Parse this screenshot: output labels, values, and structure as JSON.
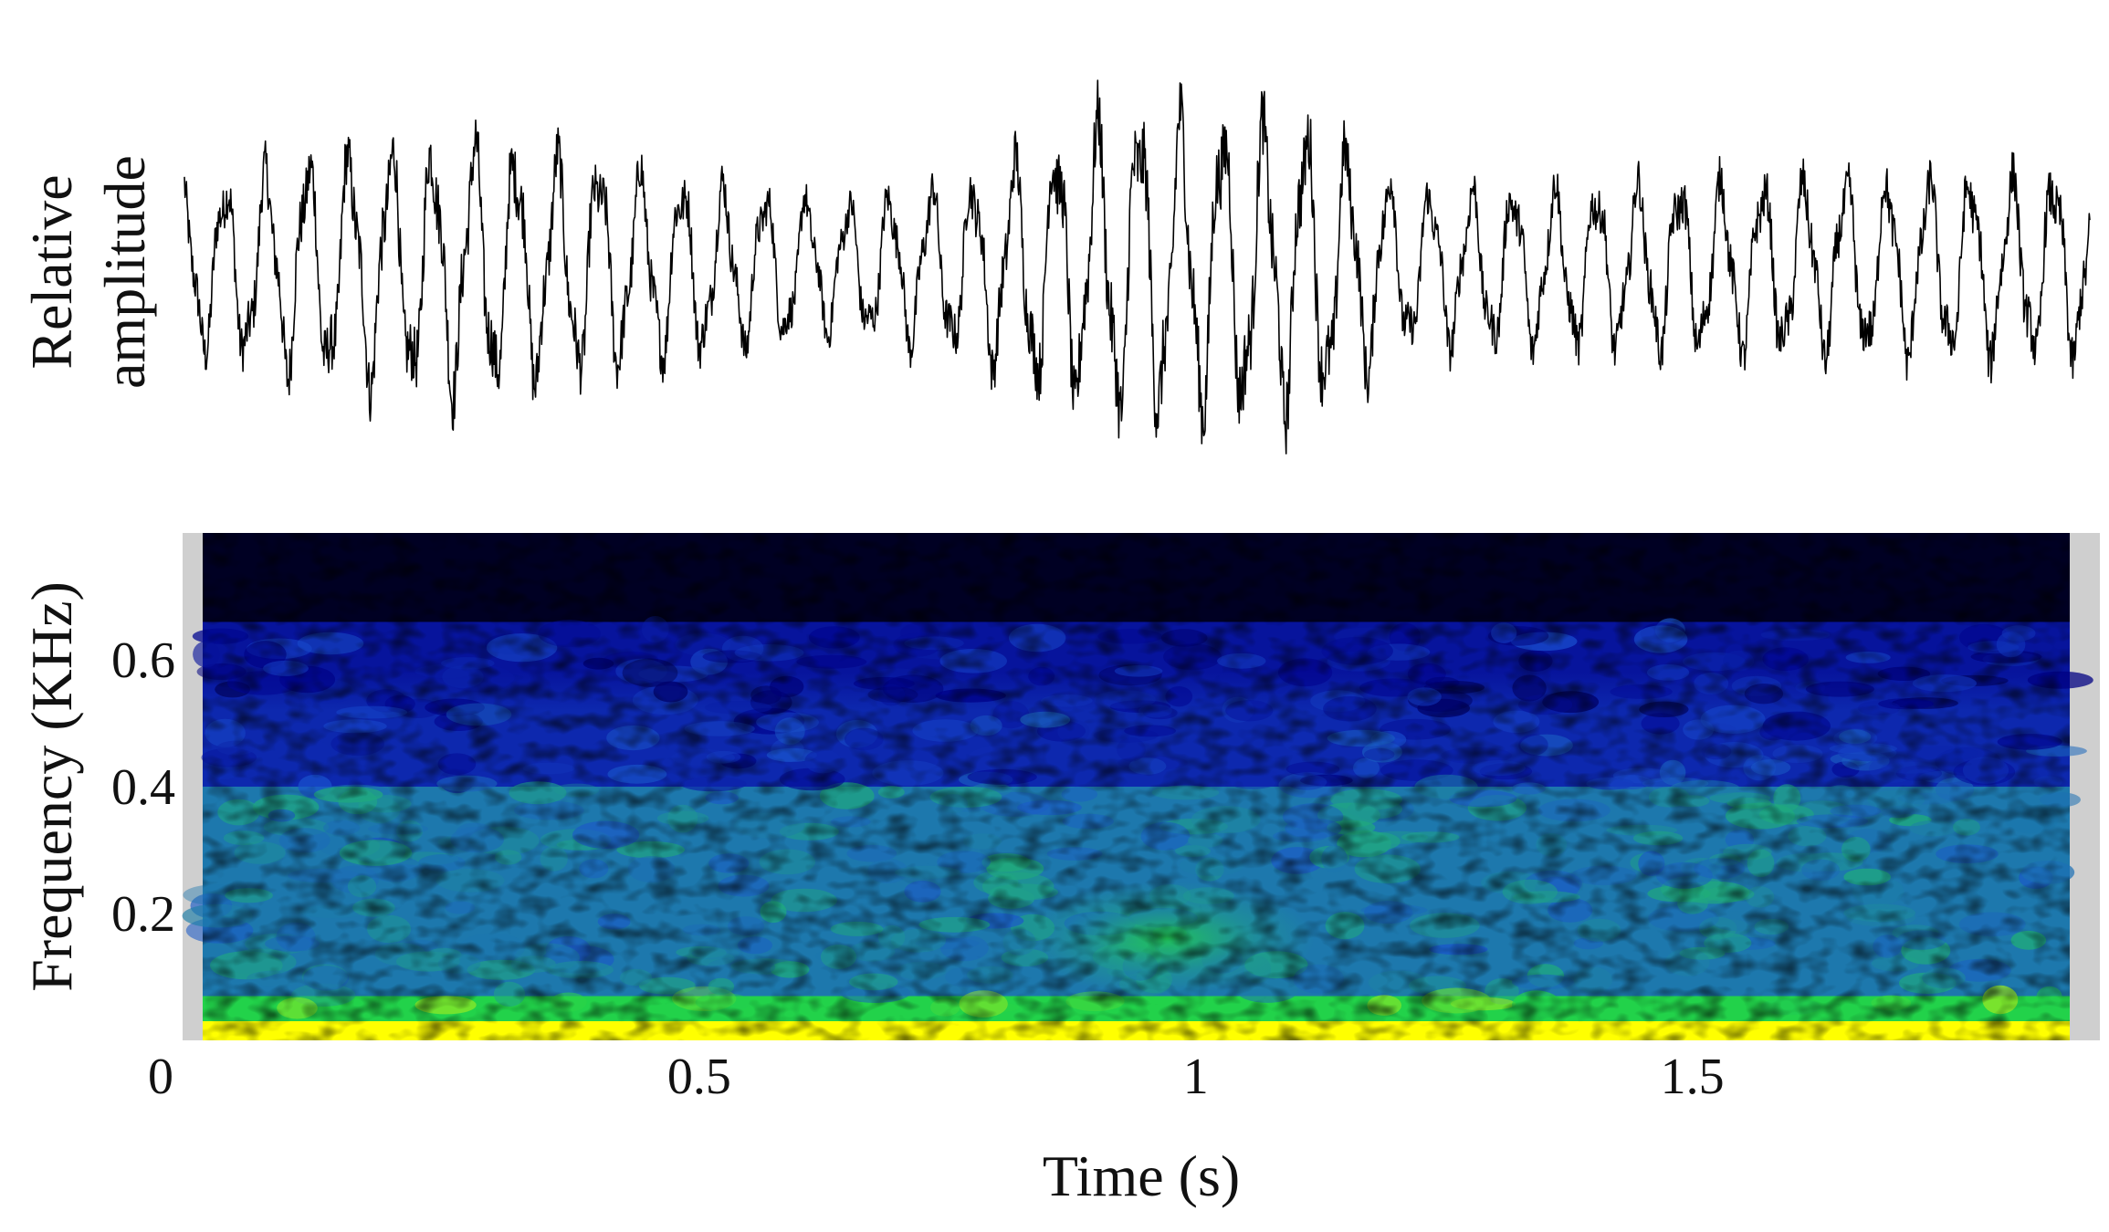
{
  "chart_data": [
    {
      "type": "line",
      "ylabel_lines": [
        "Relative",
        "amplitude"
      ],
      "x_unit": "s",
      "xlim": [
        0,
        1.88
      ],
      "ylim": [
        -1,
        1
      ],
      "axes_visible": false,
      "color": "#000000",
      "series": [
        {
          "envelope": [
            {
              "t": 0.0,
              "amp": 0.55
            },
            {
              "t": 0.1,
              "amp": 0.72
            },
            {
              "t": 0.25,
              "amp": 0.82
            },
            {
              "t": 0.45,
              "amp": 0.6
            },
            {
              "t": 0.62,
              "amp": 0.42
            },
            {
              "t": 0.75,
              "amp": 0.55
            },
            {
              "t": 0.9,
              "amp": 0.98
            },
            {
              "t": 1.1,
              "amp": 0.92
            },
            {
              "t": 1.2,
              "amp": 0.5
            },
            {
              "t": 1.45,
              "amp": 0.55
            },
            {
              "t": 1.88,
              "amp": 0.6
            }
          ]
        }
      ]
    },
    {
      "type": "heatmap",
      "ylabel": "Frequency (KHz)",
      "xlabel": "Time (s)",
      "x_ticks": [
        {
          "value": 0,
          "label": "0"
        },
        {
          "value": 0.5,
          "label": "0.5"
        },
        {
          "value": 1,
          "label": "1"
        },
        {
          "value": 1.5,
          "label": "1.5"
        }
      ],
      "y_ticks": [
        {
          "value": 0.2,
          "label": "0.2"
        },
        {
          "value": 0.4,
          "label": "0.4"
        },
        {
          "value": 0.6,
          "label": "0.6"
        }
      ],
      "xlim": [
        0,
        1.88
      ],
      "ylim": [
        0,
        0.8
      ],
      "colormap": [
        "#000000",
        "#00008b",
        "#1a4fd0",
        "#1fa08a",
        "#22d24a",
        "#ffff00"
      ],
      "padding_color": "#cfcfcf",
      "bands": [
        {
          "f_low": 0.0,
          "f_high": 0.03,
          "level": 1.0
        },
        {
          "f_low": 0.03,
          "f_high": 0.07,
          "level": 0.8
        },
        {
          "f_low": 0.07,
          "f_high": 0.4,
          "level": 0.5
        },
        {
          "f_low": 0.4,
          "f_high": 0.52,
          "level": 0.3
        },
        {
          "f_low": 0.58,
          "f_high": 0.66,
          "level": 0.25
        },
        {
          "f_low": 0.66,
          "f_high": 0.8,
          "level": 0.05
        }
      ],
      "event": {
        "t_start": 0.82,
        "t_end": 1.12,
        "f_low": 0.07,
        "f_high": 0.25,
        "level": 0.72
      }
    }
  ]
}
